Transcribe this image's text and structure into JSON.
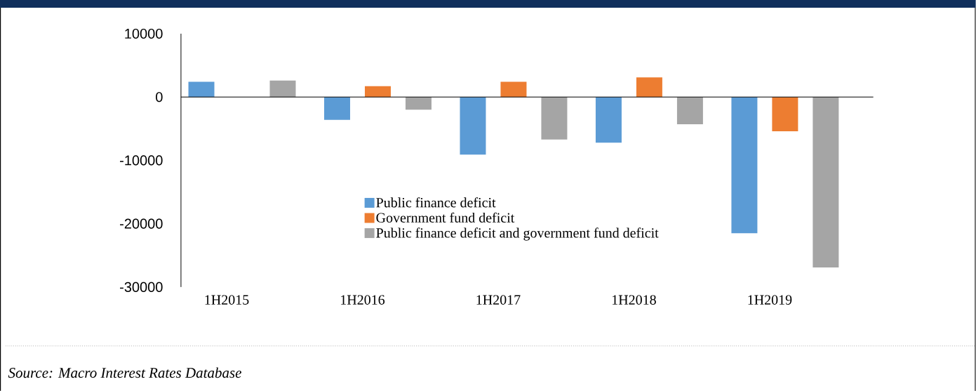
{
  "chart_data": {
    "type": "bar",
    "categories": [
      "1H2015",
      "1H2016",
      "1H2017",
      "1H2018",
      "1H2019"
    ],
    "series": [
      {
        "name": "Public finance deficit",
        "color": "#5b9bd5",
        "values": [
          2400,
          -3600,
          -9100,
          -7200,
          -21500
        ]
      },
      {
        "name": "Government fund deficit",
        "color": "#ed7d31",
        "values": [
          null,
          1700,
          2400,
          3100,
          -5400
        ]
      },
      {
        "name": "Public finance deficit and government fund deficit",
        "color": "#a5a5a5",
        "values": [
          2600,
          -2000,
          -6700,
          -4300,
          -26900
        ]
      }
    ],
    "ylim": [
      -30000,
      10000
    ],
    "yticks": [
      -30000,
      -20000,
      -10000,
      0,
      10000
    ],
    "legend": "bottom",
    "annotations": [
      "*Source: Macro Interest Rates Database*"
    ]
  }
}
